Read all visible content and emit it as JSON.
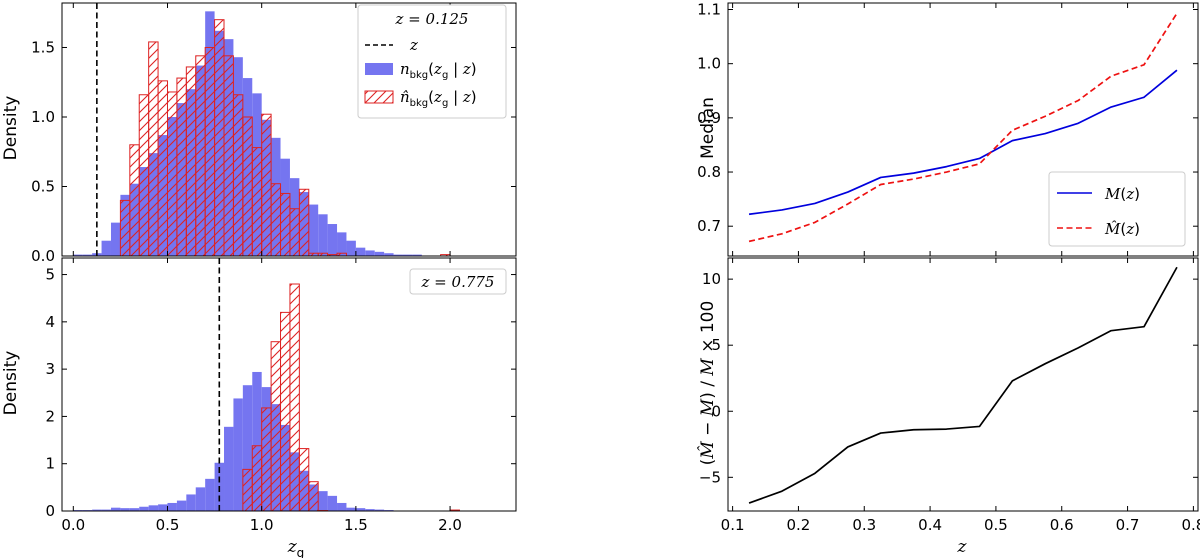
{
  "chart_data": [
    {
      "id": "hist_top",
      "type": "bar",
      "title": "",
      "xlabel": "",
      "ylabel": "Density",
      "xlim": [
        -0.06,
        2.35
      ],
      "ylim": [
        0,
        1.82
      ],
      "bin_edges": [
        0.0,
        0.05,
        0.1,
        0.15,
        0.2,
        0.25,
        0.3,
        0.35,
        0.4,
        0.45,
        0.5,
        0.55,
        0.6,
        0.65,
        0.7,
        0.75,
        0.8,
        0.85,
        0.9,
        0.95,
        1.0,
        1.05,
        1.1,
        1.15,
        1.2,
        1.25,
        1.3,
        1.35,
        1.4,
        1.45,
        1.5,
        1.55,
        1.6,
        1.65,
        1.7,
        1.75,
        1.8,
        1.85,
        1.9,
        1.95,
        2.0,
        2.05,
        2.1,
        2.15,
        2.2,
        2.25
      ],
      "series": [
        {
          "name": "n_bkg(z_g | z)",
          "style": "filled",
          "color": "#7575f0",
          "values": [
            0.01,
            0.01,
            0.02,
            0.11,
            0.24,
            0.44,
            0.52,
            0.64,
            0.74,
            0.87,
            1.0,
            1.1,
            1.2,
            1.37,
            1.76,
            1.62,
            1.56,
            1.43,
            1.28,
            1.17,
            0.98,
            0.85,
            0.7,
            0.56,
            0.46,
            0.37,
            0.3,
            0.23,
            0.17,
            0.11,
            0.06,
            0.04,
            0.03,
            0.02,
            0.01,
            0.01,
            0.01,
            0.0,
            0.0,
            0.0,
            0.0,
            0.0,
            0.0,
            0.0,
            0.0
          ]
        },
        {
          "name": "n_hat_bkg(z_g | z)",
          "style": "hatched",
          "color": "#dd2222",
          "values": [
            0,
            0,
            0,
            0,
            0,
            0.4,
            0.8,
            1.16,
            1.54,
            1.26,
            1.18,
            1.28,
            1.36,
            1.44,
            1.5,
            1.7,
            1.44,
            1.16,
            1.0,
            0.78,
            1.02,
            0.52,
            0.45,
            0.34,
            0.48,
            0.02,
            0.02,
            0.01,
            0.02,
            0,
            0,
            0,
            0,
            0,
            0,
            0,
            0,
            0,
            0,
            0.01,
            0,
            0,
            0,
            0,
            0
          ]
        }
      ],
      "vline": {
        "label": "z",
        "x": 0.125
      },
      "xticks": [
        0.0,
        0.5,
        1.0,
        1.5,
        2.0
      ],
      "xtick_labels": [],
      "yticks": [
        0.0,
        0.5,
        1.0,
        1.5
      ],
      "ytick_labels": [
        "0.0",
        "0.5",
        "1.0",
        "1.5"
      ],
      "legend": {
        "placement": "top-right",
        "title": "z = 0.125"
      }
    },
    {
      "id": "hist_bottom",
      "type": "bar",
      "title": "",
      "xlabel": "z_g",
      "ylabel": "Density",
      "xlim": [
        -0.06,
        2.35
      ],
      "ylim": [
        0,
        5.35
      ],
      "bin_edges": [
        0.0,
        0.05,
        0.1,
        0.15,
        0.2,
        0.25,
        0.3,
        0.35,
        0.4,
        0.45,
        0.5,
        0.55,
        0.6,
        0.65,
        0.7,
        0.75,
        0.8,
        0.85,
        0.9,
        0.95,
        1.0,
        1.05,
        1.1,
        1.15,
        1.2,
        1.25,
        1.3,
        1.35,
        1.4,
        1.45,
        1.5,
        1.55,
        1.6,
        1.65,
        1.7,
        1.75,
        1.8,
        1.85,
        1.9,
        1.95,
        2.0,
        2.05,
        2.1,
        2.15,
        2.2,
        2.25
      ],
      "series": [
        {
          "name": "n_bkg(z_g | z)",
          "style": "filled",
          "color": "#7575f0",
          "values": [
            0.02,
            0.02,
            0.03,
            0.03,
            0.07,
            0.06,
            0.06,
            0.09,
            0.12,
            0.14,
            0.17,
            0.22,
            0.35,
            0.5,
            0.68,
            1.02,
            1.78,
            2.38,
            2.66,
            2.94,
            2.62,
            2.26,
            1.82,
            1.24,
            0.85,
            0.56,
            0.42,
            0.32,
            0.17,
            0.07,
            0.06,
            0.04,
            0.03,
            0.02,
            0.01,
            0.01,
            0.01,
            0.0,
            0.0,
            0.0,
            0.0,
            0.0,
            0.0,
            0.0,
            0.0
          ]
        },
        {
          "name": "n_hat_bkg(z_g | z)",
          "style": "hatched",
          "color": "#dd2222",
          "values": [
            0,
            0,
            0,
            0,
            0,
            0,
            0,
            0,
            0,
            0,
            0,
            0,
            0,
            0,
            0,
            0,
            0,
            0,
            0.88,
            1.38,
            2.18,
            3.58,
            4.2,
            4.8,
            1.32,
            0.62,
            0.01,
            0,
            0,
            0,
            0,
            0,
            0,
            0,
            0,
            0,
            0,
            0,
            0,
            0,
            0.02,
            0,
            0,
            0,
            0
          ]
        }
      ],
      "vline": {
        "label": "z",
        "x": 0.775
      },
      "xticks": [
        0.0,
        0.5,
        1.0,
        1.5,
        2.0
      ],
      "xtick_labels": [
        "0.0",
        "0.5",
        "1.0",
        "1.5",
        "2.0"
      ],
      "yticks": [
        0,
        1,
        2,
        3,
        4,
        5
      ],
      "ytick_labels": [
        "0",
        "1",
        "2",
        "3",
        "4",
        "5"
      ],
      "legend": {
        "placement": "top-right",
        "title": "z = 0.775"
      }
    },
    {
      "id": "median_line",
      "type": "line",
      "title": "",
      "xlabel": "",
      "ylabel": "Median",
      "xlim": [
        0.093,
        0.807
      ],
      "ylim": [
        0.645,
        1.112
      ],
      "x": [
        0.125,
        0.175,
        0.225,
        0.275,
        0.325,
        0.375,
        0.425,
        0.475,
        0.525,
        0.575,
        0.625,
        0.675,
        0.725,
        0.775
      ],
      "series": [
        {
          "name": "M(z)",
          "style": "solid",
          "color": "#0000dd",
          "values": [
            0.722,
            0.73,
            0.742,
            0.763,
            0.79,
            0.798,
            0.81,
            0.825,
            0.858,
            0.871,
            0.89,
            0.92,
            0.938,
            0.988
          ]
        },
        {
          "name": "M_hat(z)",
          "style": "dashed",
          "color": "#ee1111",
          "values": [
            0.672,
            0.686,
            0.707,
            0.741,
            0.777,
            0.787,
            0.8,
            0.815,
            0.877,
            0.903,
            0.932,
            0.977,
            0.998,
            1.093
          ]
        }
      ],
      "xticks": [
        0.1,
        0.2,
        0.3,
        0.4,
        0.5,
        0.6,
        0.7,
        0.8
      ],
      "xtick_labels": [],
      "yticks": [
        0.7,
        0.8,
        0.9,
        1.0,
        1.1
      ],
      "ytick_labels": [
        "0.7",
        "0.8",
        "0.9",
        "1.0",
        "1.1"
      ],
      "legend": {
        "placement": "bottom-right"
      }
    },
    {
      "id": "relative_difference",
      "type": "line",
      "title": "",
      "xlabel": "z",
      "ylabel": "(M_hat - M)/M x 100",
      "xlim": [
        0.093,
        0.807
      ],
      "ylim": [
        -7.55,
        11.6
      ],
      "x": [
        0.125,
        0.175,
        0.225,
        0.275,
        0.325,
        0.375,
        0.425,
        0.475,
        0.525,
        0.575,
        0.625,
        0.675,
        0.725,
        0.775
      ],
      "series": [
        {
          "name": "relative difference",
          "style": "solid",
          "color": "#000000",
          "values": [
            -6.95,
            -6.05,
            -4.7,
            -2.7,
            -1.65,
            -1.4,
            -1.35,
            -1.15,
            2.3,
            3.6,
            4.8,
            6.1,
            6.4,
            10.9
          ]
        }
      ],
      "xticks": [
        0.1,
        0.2,
        0.3,
        0.4,
        0.5,
        0.6,
        0.7,
        0.8
      ],
      "xtick_labels": [
        "0.1",
        "0.2",
        "0.3",
        "0.4",
        "0.5",
        "0.6",
        "0.7",
        "0.8"
      ],
      "yticks": [
        -5,
        0,
        5,
        10
      ],
      "ytick_labels": [
        "−5",
        "0",
        "5",
        "10"
      ]
    }
  ]
}
